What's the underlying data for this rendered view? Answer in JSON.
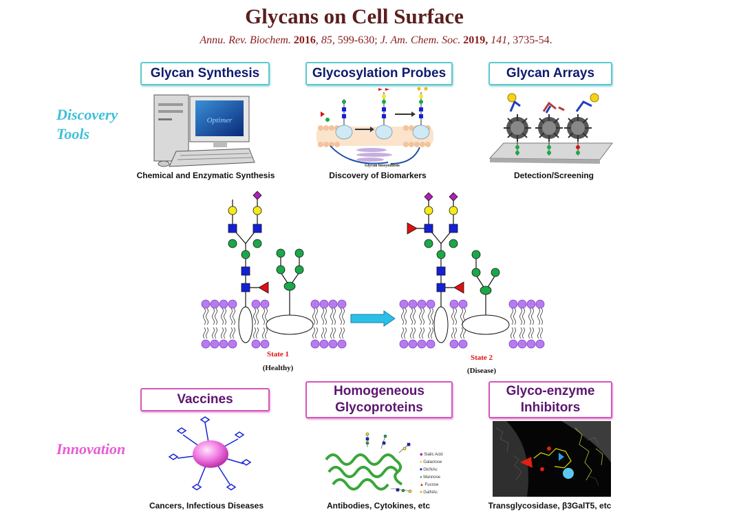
{
  "header": {
    "title": "Glycans on Cell Surface",
    "citation": {
      "j1": "Annu. Rev. Biochem.",
      "y1": "2016",
      "v1": "85",
      "p1": ", 599-630; ",
      "j2": "J. Am. Chem. Soc.",
      "y2": "2019,",
      "v2": "141",
      "p2": ", 3735-54."
    }
  },
  "discovery": {
    "side_label_1": "Discovery",
    "side_label_2": "Tools",
    "boxes": [
      {
        "label": "Glycan Synthesis",
        "caption": "Chemical and Enzymatic Synthesis"
      },
      {
        "label": "Glycosylation Probes",
        "caption": "Discovery of Biomarkers"
      },
      {
        "label": "Glycan Arrays",
        "caption": "Detection/Screening"
      }
    ],
    "monitor_text": "Optimer",
    "probe_inner_text": "Glycan biosynthesis"
  },
  "membrane": {
    "state1_label": "State 1",
    "state1_sub": "(Healthy)",
    "state2_label": "State 2",
    "state2_sub": "(Disease)"
  },
  "innovation": {
    "side_label": "Innovation",
    "boxes": [
      {
        "label": "Vaccines",
        "caption": "Cancers, Infectious Diseases"
      },
      {
        "label": "Homogeneous Glycoproteins",
        "caption": "Antibodies, Cytokines, etc"
      },
      {
        "label": "Glyco-enzyme Inhibitors",
        "caption": "Transglycosidase, β3GalT5, etc"
      }
    ],
    "legend": [
      "Sialic Acid",
      "Galactose",
      "GlcNAc",
      "Mannose",
      "Fucose",
      "GalNAc"
    ]
  },
  "colors": {
    "title": "#5a1e1e",
    "citation": "#8b1a1a",
    "discovery": "#3fbfd9",
    "innovation": "#e85bd0",
    "state": "#e01010",
    "sialic": "#b11fb5",
    "galactose": "#f5ea1a",
    "glcnac": "#1420d8",
    "mannose": "#1aa84a",
    "fucose": "#e01010",
    "lipid_head": "#b77bf0",
    "arrow": "#2bbfe8"
  }
}
